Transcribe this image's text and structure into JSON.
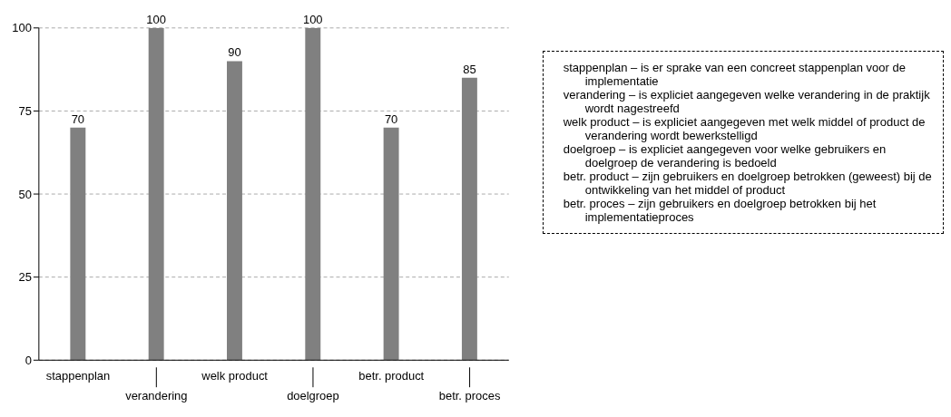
{
  "chart_data": {
    "type": "bar",
    "categories": [
      "stappenplan",
      "verandering",
      "welk product",
      "doelgroep",
      "betr. product",
      "betr. proces"
    ],
    "values": [
      70,
      100,
      90,
      100,
      70,
      85
    ],
    "color": "#808080",
    "data_labels": true,
    "ylim": [
      0,
      100
    ],
    "yticks": [
      0,
      25,
      50,
      75,
      100
    ],
    "grid": "y",
    "legend": false,
    "annotations": [
      "stappenplan – is er sprake van een concreet stappenplan voor de implementatie",
      "verandering – is expliciet aangegeven welke verandering in de praktijk wordt nagestreefd",
      "welk product – is expliciet aangegeven met welk middel of product de verandering wordt bewerkstelligd",
      "doelgroep – is expliciet aangegeven voor welke gebruikers en doelgroep de verandering is bedoeld",
      "betr. product – zijn gebruikers en doelgroep betrokken (geweest) bij de ontwikkeling van het middel of product",
      "betr. proces – zijn gebruikers en doelgroep betrokken bij het implementatieproces"
    ]
  }
}
